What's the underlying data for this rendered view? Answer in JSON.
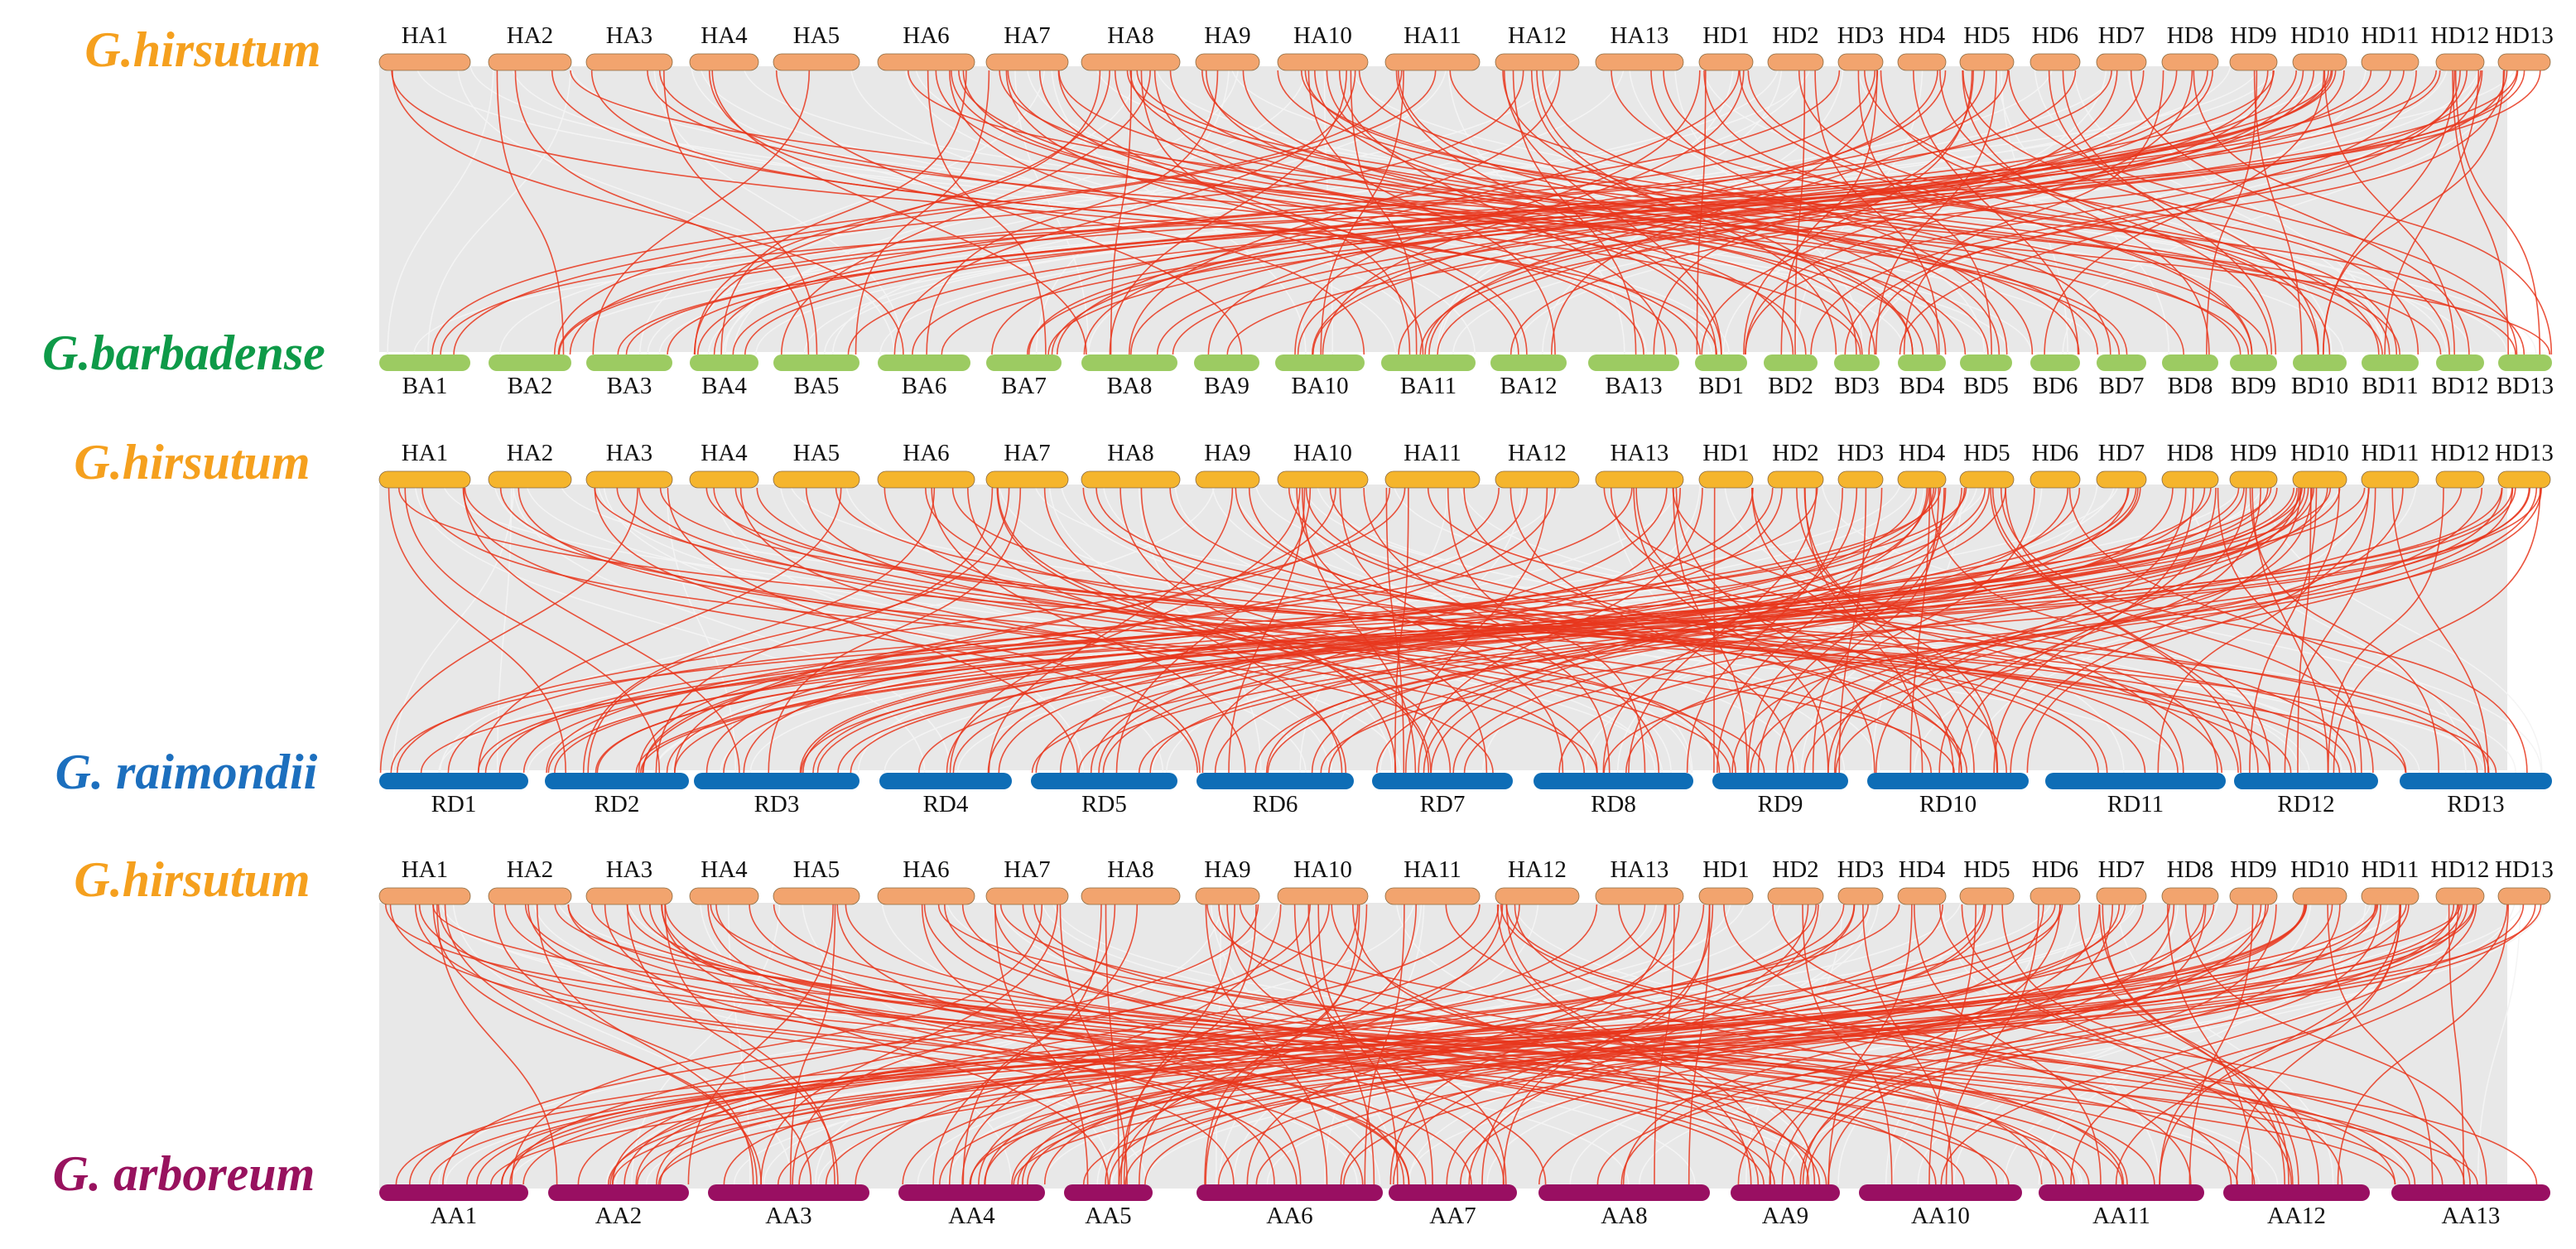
{
  "colors": {
    "hirsutum_text": "#F5A01E",
    "barbadense_text": "#0E9A48",
    "raimondii_text": "#1C6FBE",
    "arboreum_text": "#98125E",
    "hirsutum_chr_salmon": "#F2A46E",
    "hirsutum_chr_yellow": "#F5B52D",
    "barbadense_chr": "#9CCB62",
    "raimondii_chr": "#0E6DB6",
    "arboreum_chr": "#990F62",
    "collinear_bg": "#E6E6E6",
    "gene_pair_link": "#E8361C"
  },
  "panels": [
    {
      "id": "hir-vs-bar",
      "top_species": "G.hirsutum",
      "bottom_species": "G.barbadense",
      "top_chromosomes": [
        "HA1",
        "HA2",
        "HA3",
        "HA4",
        "HA5",
        "HA6",
        "HA7",
        "HA8",
        "HA9",
        "HA10",
        "HA11",
        "HA12",
        "HA13",
        "HD1",
        "HD2",
        "HD3",
        "HD4",
        "HD5",
        "HD6",
        "HD7",
        "HD8",
        "HD9",
        "HD10",
        "HD11",
        "HD12",
        "HD13"
      ],
      "bottom_chromosomes": [
        "BA1",
        "BA2",
        "BA3",
        "BA4",
        "BA5",
        "BA6",
        "BA7",
        "BA8",
        "BA9",
        "BA10",
        "BA11",
        "BA12",
        "BA13",
        "BD1",
        "BD2",
        "BD3",
        "BD4",
        "BD5",
        "BD6",
        "BD7",
        "BD8",
        "BD9",
        "BD10",
        "BD11",
        "BD12",
        "BD13"
      ]
    },
    {
      "id": "hir-vs-rai",
      "top_species": "G.hirsutum",
      "bottom_species": "G. raimondii",
      "top_chromosomes": [
        "HA1",
        "HA2",
        "HA3",
        "HA4",
        "HA5",
        "HA6",
        "HA7",
        "HA8",
        "HA9",
        "HA10",
        "HA11",
        "HA12",
        "HA13",
        "HD1",
        "HD2",
        "HD3",
        "HD4",
        "HD5",
        "HD6",
        "HD7",
        "HD8",
        "HD9",
        "HD10",
        "HD11",
        "HD12",
        "HD13"
      ],
      "bottom_chromosomes": [
        "RD1",
        "RD2",
        "RD3",
        "RD4",
        "RD5",
        "RD6",
        "RD7",
        "RD8",
        "RD9",
        "RD10",
        "RD11",
        "RD12",
        "RD13"
      ]
    },
    {
      "id": "hir-vs-arb",
      "top_species": "G.hirsutum",
      "bottom_species": "G. arboreum",
      "top_chromosomes": [
        "HA1",
        "HA2",
        "HA3",
        "HA4",
        "HA5",
        "HA6",
        "HA7",
        "HA8",
        "HA9",
        "HA10",
        "HA11",
        "HA12",
        "HA13",
        "HD1",
        "HD2",
        "HD3",
        "HD4",
        "HD5",
        "HD6",
        "HD7",
        "HD8",
        "HD9",
        "HD10",
        "HD11",
        "HD12",
        "HD13"
      ],
      "bottom_chromosomes": [
        "AA1",
        "AA2",
        "AA3",
        "AA4",
        "AA5",
        "AA6",
        "AA7",
        "AA8",
        "AA9",
        "AA10",
        "AA11",
        "AA12",
        "AA13"
      ]
    }
  ]
}
